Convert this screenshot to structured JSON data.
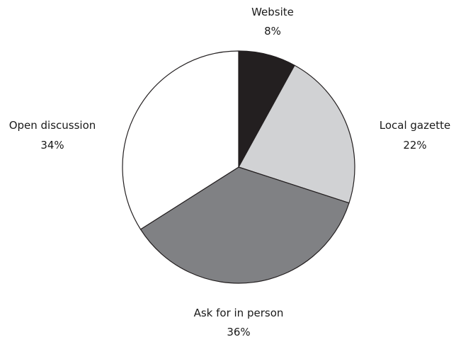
{
  "chart_data": {
    "type": "pie",
    "title": "",
    "start_angle_deg": 0,
    "direction": "clockwise",
    "slices": [
      {
        "label": "Website",
        "value": 8,
        "value_label": "8%",
        "color": "#231f20"
      },
      {
        "label": "Local gazette",
        "value": 22,
        "value_label": "22%",
        "color": "#d1d2d4"
      },
      {
        "label": "Ask for in person",
        "value": 36,
        "value_label": "36%",
        "color": "#808184"
      },
      {
        "label": "Open discussion",
        "value": 34,
        "value_label": "34%",
        "color": "#ffffff"
      }
    ],
    "stroke_color": "#231f20"
  }
}
